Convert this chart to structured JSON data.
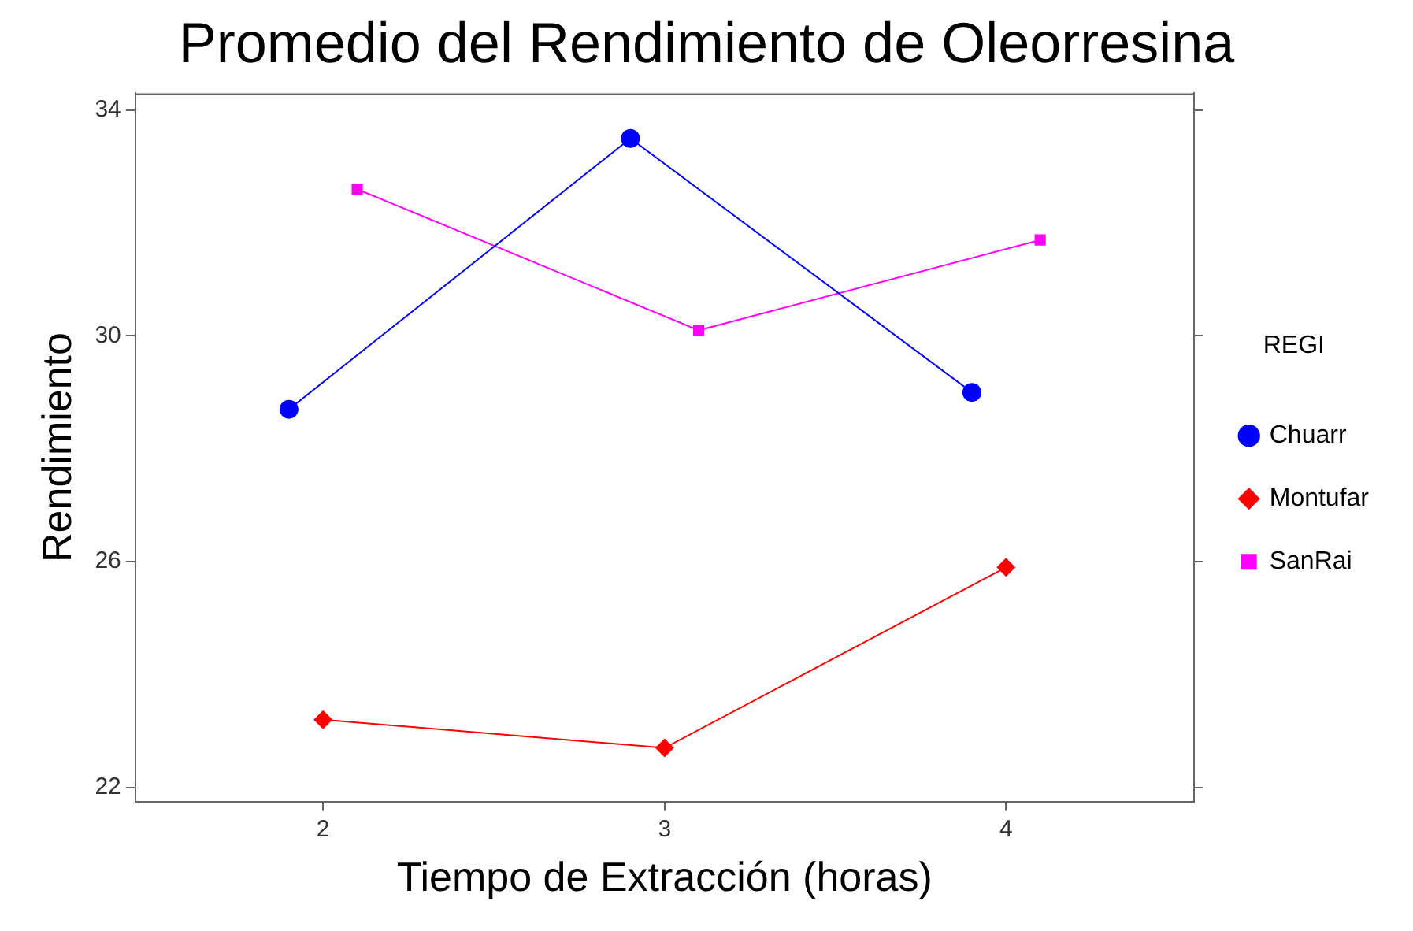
{
  "chart_data": {
    "type": "line",
    "title": "Promedio del Rendimiento de Oleorresina",
    "xlabel": "Tiempo de Extracción (horas)",
    "ylabel": "Rendimiento",
    "legend_title": "REGI",
    "categories": [
      "2",
      "3",
      "4"
    ],
    "series": [
      {
        "name": "Chuarr",
        "color": "#0000ff",
        "marker": "circle",
        "values": [
          28.7,
          33.5,
          29.0
        ]
      },
      {
        "name": "Montufar",
        "color": "#ff0000",
        "marker": "diamond",
        "values": [
          23.2,
          22.7,
          25.9
        ]
      },
      {
        "name": "SanRai",
        "color": "#ff00ff",
        "marker": "square",
        "values": [
          32.6,
          30.1,
          31.7
        ]
      }
    ],
    "ylim": [
      21.75,
      34.3
    ],
    "yticks": [
      22,
      26,
      30,
      34
    ],
    "grid": false,
    "legend": "right"
  }
}
